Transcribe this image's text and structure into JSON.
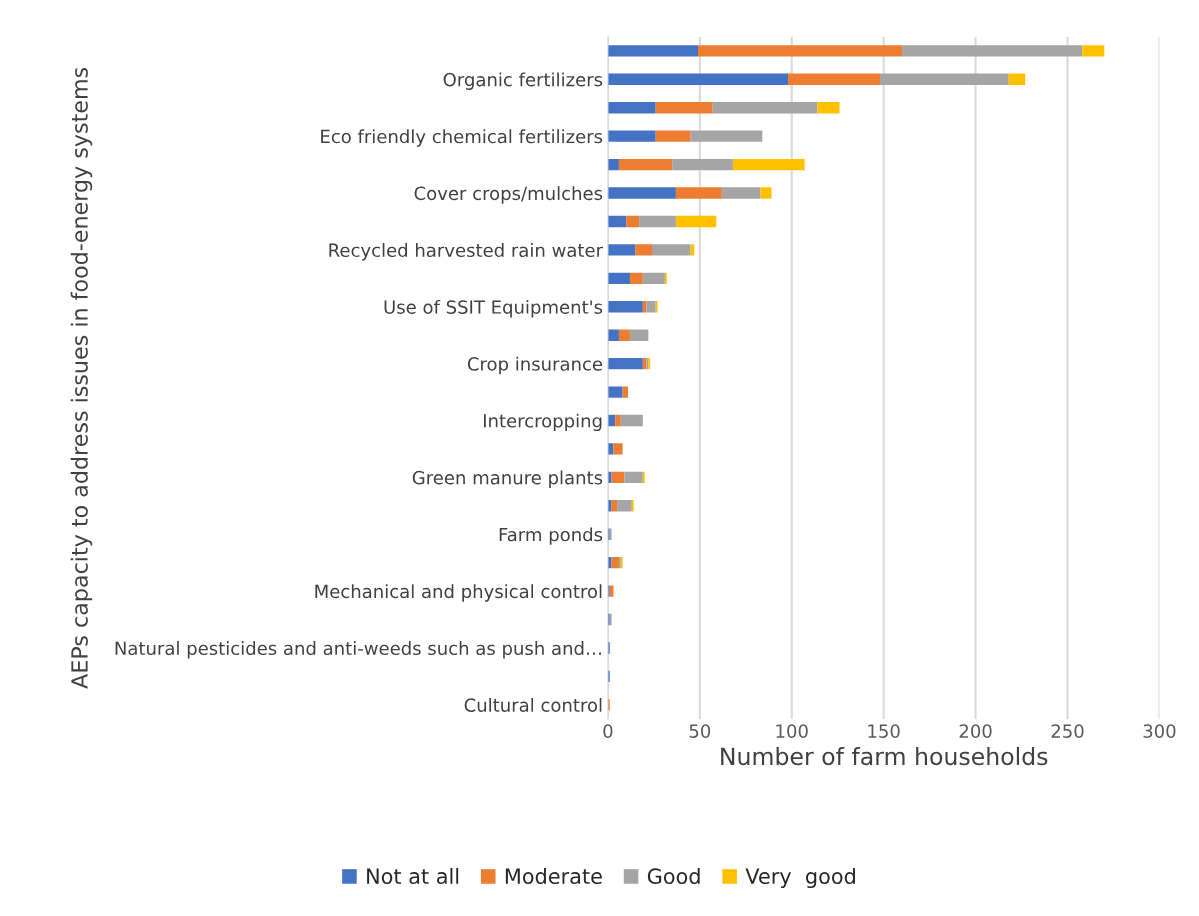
{
  "chart_data": {
    "type": "bar",
    "orientation": "horizontal",
    "stacked": true,
    "xlabel": "Number of farm households",
    "ylabel": "AEPs capacity to address issues in food-energy systems",
    "categories": [
      null,
      "Organic fertilizers",
      null,
      "Eco friendly chemical fertilizers",
      null,
      "Cover crops/mulches",
      null,
      "Recycled harvested rain water",
      null,
      "Use of SSIT Equipment's",
      null,
      "Crop insurance",
      null,
      "Intercropping",
      null,
      "Green manure plants",
      null,
      "Farm ponds",
      null,
      "Mechanical and physical control",
      null,
      "Natural pesticides and anti-weeds such as push and…",
      null,
      "Cultural control"
    ],
    "series": [
      {
        "name": "Not at all",
        "color": "#4472c4",
        "values": [
          49,
          98,
          26,
          26,
          6,
          37,
          10,
          15,
          12,
          19,
          6,
          19,
          8,
          4,
          3,
          2,
          2,
          1,
          2,
          1,
          1,
          1,
          1,
          null
        ]
      },
      {
        "name": "Moderate",
        "color": "#ed7d31",
        "values": [
          111,
          50,
          31,
          19,
          29,
          25,
          7,
          9,
          7,
          2,
          6,
          2,
          3,
          3,
          5,
          7,
          3,
          null,
          4,
          2,
          null,
          null,
          null,
          1
        ]
      },
      {
        "name": "Good",
        "color": "#a5a5a5",
        "values": [
          98,
          70,
          57,
          39,
          33,
          21,
          20,
          21,
          12,
          5,
          10,
          1,
          null,
          12,
          null,
          10,
          8,
          1,
          1,
          null,
          1,
          null,
          null,
          null
        ]
      },
      {
        "name": "Very  good",
        "color": "#ffc000",
        "values": [
          12,
          9,
          12,
          null,
          39,
          6,
          22,
          2,
          1,
          1,
          null,
          1,
          null,
          null,
          null,
          1,
          1,
          null,
          1,
          null,
          null,
          null,
          null,
          null
        ]
      }
    ],
    "xlim": [
      0,
      300
    ],
    "xticks": [
      0,
      50,
      100,
      150,
      200,
      250,
      300
    ],
    "grid": "x",
    "legend": "bottom"
  }
}
